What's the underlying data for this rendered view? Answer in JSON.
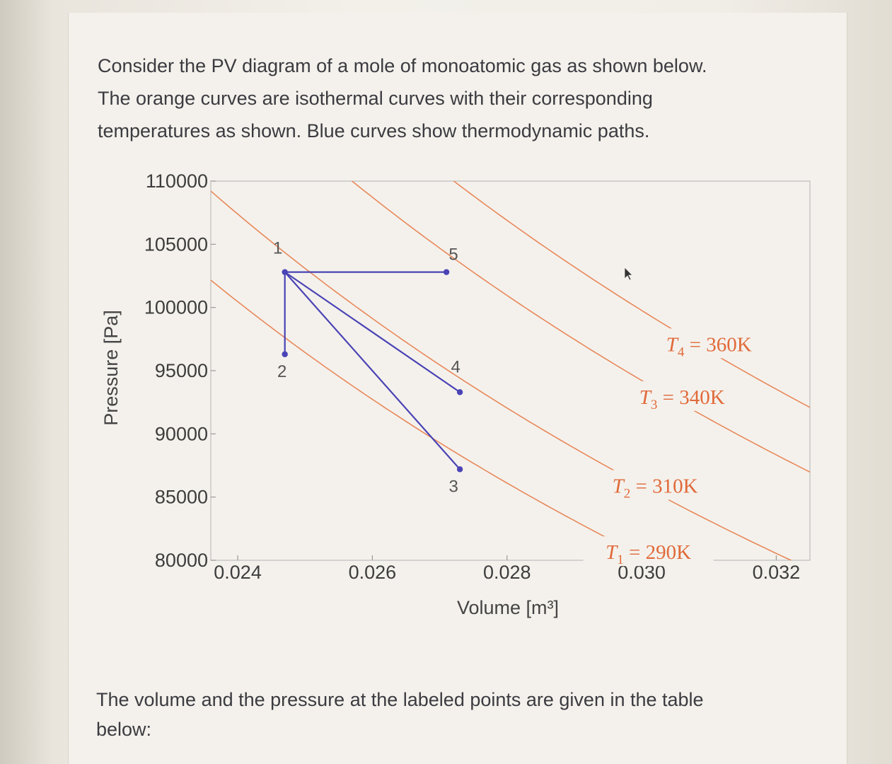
{
  "intro_lines": [
    "Consider the PV diagram of a mole of monoatomic gas as shown below.",
    "The orange curves are isothermal curves with their corresponding",
    "temperatures as shown. Blue curves show thermodynamic paths."
  ],
  "outro_lines": [
    "The volume and the pressure at the labeled points are given in the table",
    "below:"
  ],
  "chart_data": {
    "type": "line",
    "xlabel": "Volume [m³]",
    "ylabel": "Pressure [Pa]",
    "xlim": [
      0.0236,
      0.0325
    ],
    "ylim": [
      80000,
      110000
    ],
    "x_ticks": [
      0.024,
      0.026,
      0.028,
      0.03,
      0.032
    ],
    "x_tick_labels": [
      "0.024",
      "0.026",
      "0.028",
      "0.030",
      "0.032"
    ],
    "y_ticks": [
      80000,
      85000,
      90000,
      95000,
      100000,
      105000,
      110000
    ],
    "y_tick_labels": [
      "80000",
      "85000",
      "90000",
      "95000",
      "100000",
      "105000",
      "110000"
    ],
    "gas_constant_nR": 8.314,
    "isotherms": [
      {
        "name": "T1",
        "label_base": "T",
        "label_sub": "1",
        "label_rest": " = 290K",
        "T": 290
      },
      {
        "name": "T2",
        "label_base": "T",
        "label_sub": "2",
        "label_rest": " = 310K",
        "T": 310
      },
      {
        "name": "T3",
        "label_base": "T",
        "label_sub": "3",
        "label_rest": " = 340K",
        "T": 340
      },
      {
        "name": "T4",
        "label_base": "T",
        "label_sub": "4",
        "label_rest": " = 360K",
        "T": 360
      }
    ],
    "points": [
      {
        "label": "1",
        "V": 0.0247,
        "P": 102800
      },
      {
        "label": "2",
        "V": 0.0247,
        "P": 96300
      },
      {
        "label": "3",
        "V": 0.0273,
        "P": 87200
      },
      {
        "label": "4",
        "V": 0.0273,
        "P": 93300
      },
      {
        "label": "5",
        "V": 0.0271,
        "P": 102800
      }
    ],
    "paths": [
      {
        "from": "1",
        "to": "2"
      },
      {
        "from": "1",
        "to": "3"
      },
      {
        "from": "1",
        "to": "4"
      },
      {
        "from": "1",
        "to": "5"
      }
    ],
    "colors": {
      "isotherm": "#e8885a",
      "path": "#4a43b5",
      "point": "#4a43b5",
      "frame": "#bdbdbd"
    }
  }
}
